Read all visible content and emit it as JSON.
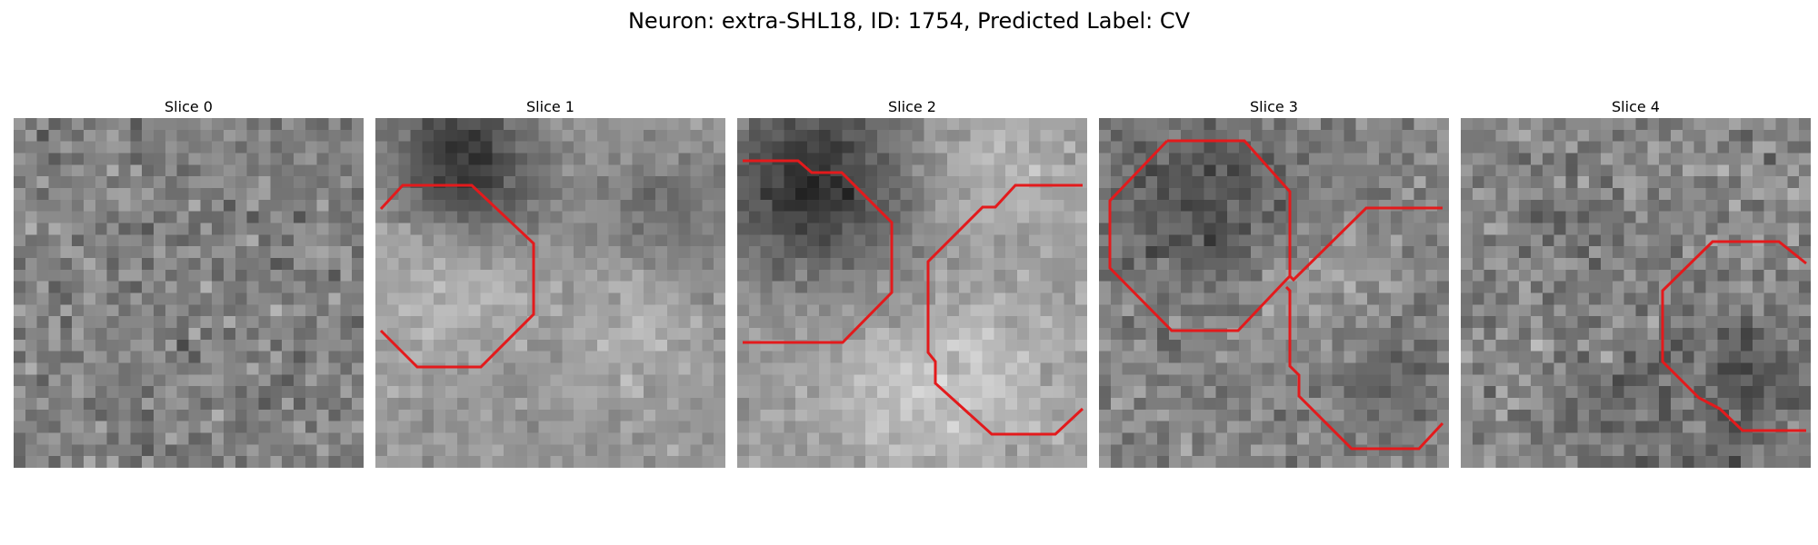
{
  "figure": {
    "title": "Neuron: extra-SHL18, ID: 1754, Predicted Label: CV"
  },
  "colormap": "gray",
  "contour_color": "#e31a1c",
  "slices": [
    {
      "title": "Slice 0",
      "has_contour": false
    },
    {
      "title": "Slice 1",
      "has_contour": true
    },
    {
      "title": "Slice 2",
      "has_contour": true
    },
    {
      "title": "Slice 3",
      "has_contour": true
    },
    {
      "title": "Slice 4",
      "has_contour": true
    }
  ]
}
